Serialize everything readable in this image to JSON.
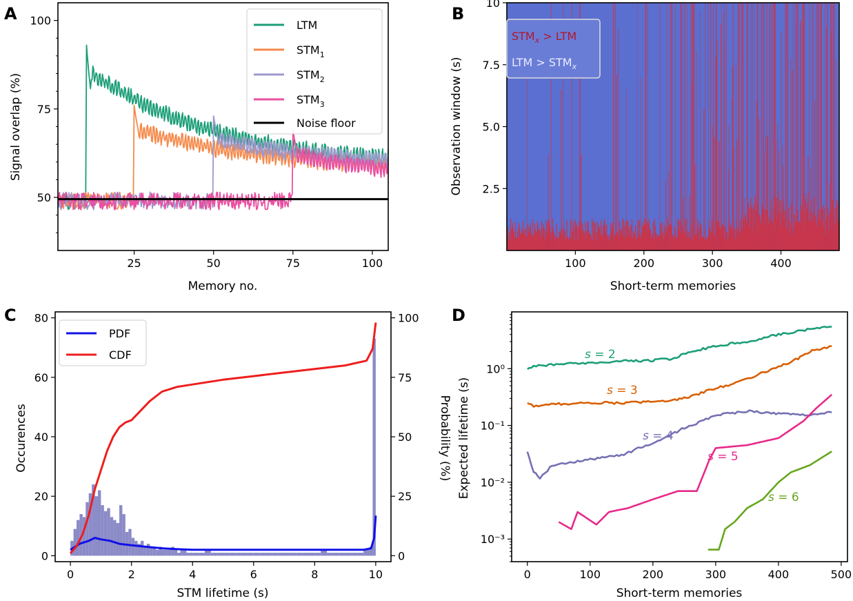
{
  "panels": [
    {
      "letter": "A",
      "chart_data": {
        "type": "line",
        "xlabel": "Memory no.",
        "ylabel": "Signal overlap (%)",
        "xlim": [
          1,
          105
        ],
        "ylim": [
          35,
          105
        ],
        "xticks": [
          25,
          50,
          75,
          100
        ],
        "yticks": [
          50,
          75,
          100
        ],
        "legend": "top-right",
        "series": [
          {
            "name": "LTM",
            "color": "#1b9e77",
            "start": 10,
            "baseline": 50,
            "peak": 93,
            "decay_to": 57
          },
          {
            "name": "STM1",
            "color": "#f58a4b",
            "start": 25,
            "baseline": 50,
            "peak": 76,
            "decay_to": 56
          },
          {
            "name": "STM2",
            "color": "#9c98cc",
            "start": 50,
            "baseline": 50,
            "peak": 73,
            "decay_to": 57
          },
          {
            "name": "STM3",
            "color": "#ea4fa1",
            "start": 75,
            "baseline": 50,
            "peak": 69,
            "decay_to": 52
          },
          {
            "name": "Noise floor",
            "color": "#000000",
            "value": 49.5
          }
        ]
      }
    },
    {
      "letter": "B",
      "chart_data": {
        "type": "heatmap",
        "xlabel": "Short-term memories",
        "ylabel": "Observation window (s)",
        "xlim": [
          0,
          485
        ],
        "ylim": [
          0,
          10
        ],
        "xticks": [
          100,
          200,
          300,
          400
        ],
        "yticks": [
          2.5,
          5.0,
          7.5,
          10
        ],
        "legend": "top-left",
        "legend_entries": [
          {
            "label_main": "STM",
            "label_sub": "x",
            "label_rest": " > LTM",
            "color": "#c7364c"
          },
          {
            "label_main": "LTM > STM",
            "label_sub": "x",
            "label_rest": "",
            "color": "#5a6fd0"
          }
        ],
        "colors": {
          "stm_wins": "#c7364c",
          "ltm_wins": "#5a6fd0"
        }
      }
    },
    {
      "letter": "C",
      "chart_data": {
        "type": "bar",
        "xlabel": "STM lifetime (s)",
        "ylabel": "Occurences",
        "ylabel_right": "Probability (%)",
        "xlim": [
          -0.5,
          10.5
        ],
        "ylim": [
          -2,
          82
        ],
        "ylim_right": [
          -2.5,
          102.5
        ],
        "xticks": [
          0,
          2,
          4,
          6,
          8,
          10
        ],
        "yticks": [
          0,
          20,
          40,
          60,
          80
        ],
        "yticks_right": [
          0,
          25,
          50,
          75,
          100
        ],
        "legend": "top-left",
        "histogram": {
          "x": [
            0.05,
            0.15,
            0.25,
            0.35,
            0.45,
            0.55,
            0.65,
            0.75,
            0.85,
            0.95,
            1.05,
            1.15,
            1.25,
            1.35,
            1.45,
            1.55,
            1.65,
            1.75,
            1.85,
            1.95,
            2.05,
            2.15,
            2.25,
            2.35,
            2.45,
            2.55,
            2.65,
            2.75,
            2.85,
            2.95,
            3.05,
            3.15,
            3.25,
            3.35,
            3.45,
            3.55,
            3.65,
            3.75,
            3.85,
            3.95,
            4.1,
            4.3,
            4.5,
            4.7,
            4.9,
            5.1,
            5.3,
            5.5,
            5.7,
            5.9,
            6.1,
            6.3,
            6.5,
            6.7,
            6.9,
            7.1,
            7.3,
            7.5,
            7.7,
            7.9,
            8.1,
            8.3,
            8.5,
            8.7,
            8.9,
            9.1,
            9.3,
            9.5,
            9.7,
            9.85,
            9.95
          ],
          "values": [
            5,
            9,
            12,
            14,
            13,
            18,
            21,
            24,
            20,
            22,
            17,
            15,
            16,
            13,
            12,
            11,
            17,
            14,
            8,
            9,
            6,
            5,
            4,
            5,
            3,
            4,
            3,
            3,
            2,
            3,
            2,
            2,
            2,
            3,
            2,
            1,
            2,
            2,
            1,
            1,
            1,
            1,
            2,
            1,
            1,
            1,
            1,
            1,
            1,
            1,
            1,
            1,
            1,
            1,
            1,
            1,
            1,
            1,
            1,
            1,
            1,
            2,
            1,
            1,
            1,
            1,
            1,
            1,
            2,
            3,
            73
          ],
          "color": "#8b8bc8"
        },
        "series": [
          {
            "name": "PDF",
            "color": "#1010e8",
            "x": [
              0,
              0.3,
              0.6,
              0.8,
              1.0,
              1.3,
              1.6,
              2.0,
              2.5,
              3.0,
              3.5,
              4.0,
              5.0,
              6.0,
              7.0,
              8.0,
              9.0,
              9.6,
              9.85,
              9.95,
              10.0
            ],
            "values": [
              2,
              4,
              5,
              6,
              5.5,
              5,
              4,
              3.5,
              3,
              2.5,
              2.2,
              2,
              2,
              2,
              2,
              2,
              2,
              2,
              2.5,
              6,
              13.5
            ]
          },
          {
            "name": "CDF",
            "color": "#ee1e1e",
            "x": [
              0,
              0.2,
              0.4,
              0.6,
              0.8,
              1.0,
              1.2,
              1.4,
              1.6,
              1.8,
              2.0,
              2.3,
              2.6,
              3.0,
              3.5,
              4.0,
              5.0,
              6.0,
              7.0,
              8.0,
              9.0,
              9.7,
              9.9,
              10.0
            ],
            "values_percent": [
              1,
              4,
              9,
              17,
              28,
              36,
              44,
              50,
              54,
              56,
              57,
              61,
              65,
              69,
              71,
              72,
              74,
              75.5,
              77,
              78.5,
              80,
              82,
              87,
              98
            ]
          }
        ]
      }
    },
    {
      "letter": "D",
      "chart_data": {
        "type": "line",
        "xlabel": "Short-term memories",
        "ylabel": "Expected lifetime (s)",
        "xlim": [
          -25,
          510
        ],
        "ylim": [
          0.0004,
          10
        ],
        "yscale": "log",
        "xticks": [
          0,
          100,
          200,
          300,
          400,
          500
        ],
        "yticks": [
          "10⁻³",
          "10⁻²",
          "10⁻¹",
          "10⁰"
        ],
        "ytick_values": [
          0.001,
          0.01,
          0.1,
          1
        ],
        "series": [
          {
            "name": "s = 2",
            "color": "#1b9e77",
            "x": [
              0,
              10,
              50,
              100,
              150,
              200,
              230,
              260,
              300,
              350,
              400,
              450,
              485
            ],
            "values": [
              1.0,
              1.1,
              1.2,
              1.25,
              1.35,
              1.4,
              1.5,
              2.0,
              2.5,
              3.0,
              4.0,
              5.0,
              5.5
            ]
          },
          {
            "name": "s = 3",
            "color": "#d95f02",
            "x": [
              0,
              10,
              50,
              100,
              150,
              200,
              250,
              300,
              340,
              380,
              420,
              450,
              485
            ],
            "values": [
              0.25,
              0.22,
              0.24,
              0.25,
              0.25,
              0.26,
              0.3,
              0.45,
              0.6,
              0.9,
              1.3,
              2.0,
              2.5
            ]
          },
          {
            "name": "s = 4",
            "color": "#7570b3",
            "x": [
              0,
              10,
              20,
              40,
              60,
              100,
              150,
              200,
              250,
              300,
              350,
              400,
              450,
              485
            ],
            "values": [
              0.035,
              0.015,
              0.012,
              0.02,
              0.022,
              0.025,
              0.03,
              0.05,
              0.09,
              0.15,
              0.18,
              0.16,
              0.15,
              0.17
            ]
          },
          {
            "name": "s = 5",
            "color": "#e7298a",
            "x": [
              50,
              70,
              80,
              110,
              130,
              160,
              200,
              240,
              270,
              290,
              300,
              350,
              400,
              440,
              460,
              485
            ],
            "values": [
              0.002,
              0.0015,
              0.003,
              0.0018,
              0.003,
              0.0035,
              0.005,
              0.007,
              0.007,
              0.025,
              0.04,
              0.045,
              0.06,
              0.12,
              0.2,
              0.35
            ]
          },
          {
            "name": "s = 6",
            "color": "#66a61e",
            "x": [
              288,
              305,
              315,
              330,
              350,
              375,
              400,
              420,
              450,
              485
            ],
            "values": [
              0.00065,
              0.00065,
              0.0015,
              0.002,
              0.0035,
              0.005,
              0.01,
              0.015,
              0.02,
              0.035
            ]
          }
        ],
        "annotations": [
          {
            "italic": "s",
            "rest": " = 2",
            "color": "#1b9e77"
          },
          {
            "italic": "s",
            "rest": " = 3",
            "color": "#d95f02"
          },
          {
            "italic": "s",
            "rest": " = 4",
            "color": "#7570b3"
          },
          {
            "italic": "s",
            "rest": " = 5",
            "color": "#e7298a"
          },
          {
            "italic": "s",
            "rest": " = 6",
            "color": "#66a61e"
          }
        ]
      }
    }
  ]
}
